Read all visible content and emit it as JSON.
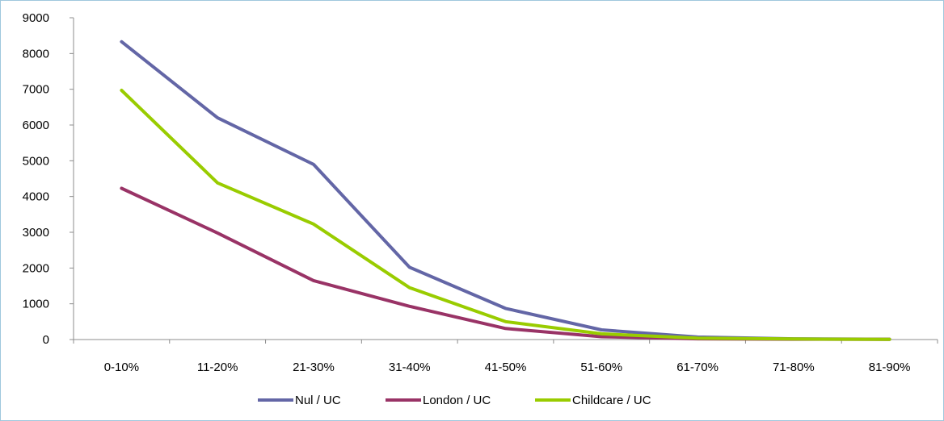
{
  "chart_data": {
    "type": "line",
    "categories": [
      "0-10%",
      "11-20%",
      "21-30%",
      "31-40%",
      "41-50%",
      "51-60%",
      "61-70%",
      "71-80%",
      "81-90%"
    ],
    "series": [
      {
        "name": "Nul / UC",
        "color": "#6366a6",
        "values": [
          8330,
          6200,
          4900,
          2020,
          870,
          270,
          70,
          20,
          10
        ]
      },
      {
        "name": "London / UC",
        "color": "#993366",
        "values": [
          4230,
          2980,
          1650,
          930,
          310,
          80,
          20,
          10,
          5
        ]
      },
      {
        "name": "Childcare / UC",
        "color": "#99cc00",
        "values": [
          6970,
          4380,
          3230,
          1450,
          500,
          160,
          40,
          15,
          5
        ]
      }
    ],
    "ylim": [
      0,
      9000
    ],
    "yticks": [
      "0",
      "1000",
      "2000",
      "3000",
      "4000",
      "5000",
      "6000",
      "7000",
      "8000",
      "9000"
    ],
    "xlabel": "",
    "ylabel": "",
    "legend_position": "bottom",
    "grid": false
  }
}
